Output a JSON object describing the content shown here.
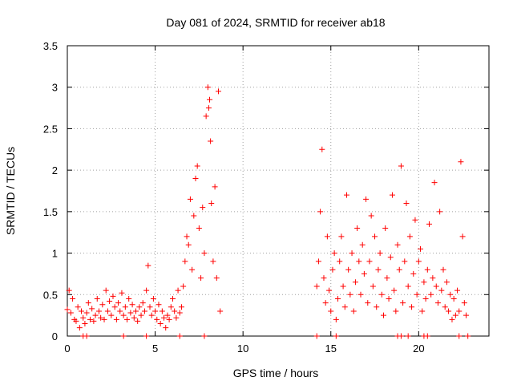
{
  "chart_data": {
    "type": "scatter",
    "title": "Day 081 of 2024, SRMTID for receiver ab18",
    "xlabel": "GPS time / hours",
    "ylabel": "SRMTID / TECUs",
    "xlim": [
      0,
      24
    ],
    "ylim": [
      0,
      3.5
    ],
    "grid": true,
    "x_ticks": [
      0,
      5,
      10,
      15,
      20
    ],
    "x_tick_labels": [
      "0",
      "5",
      "10",
      "15",
      "20"
    ],
    "y_ticks": [
      0,
      0.5,
      1,
      1.5,
      2,
      2.5,
      3,
      3.5
    ],
    "y_tick_labels": [
      "0",
      "0.5",
      "1",
      "1.5",
      "2",
      "2.5",
      "3",
      "3.5"
    ],
    "series": [
      {
        "name": "SRMTID",
        "marker": "plus",
        "color": "#ff0000",
        "x": [
          0.0,
          0.1,
          0.2,
          0.3,
          0.4,
          0.5,
          0.6,
          0.7,
          0.8,
          0.9,
          1.0,
          1.1,
          1.2,
          1.3,
          1.4,
          1.5,
          1.6,
          1.7,
          1.8,
          1.9,
          2.0,
          2.1,
          2.2,
          2.3,
          2.4,
          2.5,
          2.6,
          2.7,
          2.8,
          2.9,
          3.0,
          3.1,
          3.2,
          3.3,
          3.4,
          3.5,
          3.6,
          3.7,
          3.8,
          3.9,
          4.0,
          4.1,
          4.2,
          4.3,
          4.4,
          4.5,
          4.6,
          4.7,
          4.8,
          4.9,
          5.0,
          5.1,
          5.2,
          5.3,
          5.4,
          5.5,
          5.6,
          5.7,
          5.8,
          5.9,
          6.0,
          6.1,
          6.2,
          6.3,
          6.4,
          6.5,
          6.6,
          6.7,
          6.8,
          6.9,
          7.0,
          7.1,
          7.2,
          7.3,
          7.4,
          7.5,
          7.6,
          7.7,
          7.8,
          7.9,
          8.0,
          8.05,
          8.1,
          8.15,
          8.2,
          8.3,
          8.4,
          8.5,
          8.6,
          8.7,
          14.2,
          14.3,
          14.4,
          14.5,
          14.6,
          14.7,
          14.8,
          14.9,
          15.0,
          15.1,
          15.2,
          15.3,
          15.4,
          15.5,
          15.6,
          15.7,
          15.8,
          15.9,
          16.0,
          16.1,
          16.2,
          16.3,
          16.4,
          16.5,
          16.6,
          16.7,
          16.8,
          16.9,
          17.0,
          17.1,
          17.2,
          17.3,
          17.4,
          17.5,
          17.6,
          17.7,
          17.8,
          17.9,
          18.0,
          18.1,
          18.2,
          18.3,
          18.4,
          18.5,
          18.6,
          18.7,
          18.8,
          18.9,
          19.0,
          19.1,
          19.2,
          19.3,
          19.4,
          19.5,
          19.6,
          19.7,
          19.8,
          19.9,
          20.0,
          20.1,
          20.2,
          20.3,
          20.4,
          20.5,
          20.6,
          20.7,
          20.8,
          20.9,
          21.0,
          21.1,
          21.2,
          21.3,
          21.4,
          21.5,
          21.6,
          21.7,
          21.8,
          21.9,
          22.0,
          22.1,
          22.2,
          22.3,
          22.4,
          22.5,
          22.6,
          22.7
        ],
        "y": [
          0.32,
          0.55,
          0.28,
          0.45,
          0.2,
          0.18,
          0.35,
          0.1,
          0.3,
          0.22,
          0.15,
          0.28,
          0.4,
          0.2,
          0.33,
          0.18,
          0.25,
          0.45,
          0.3,
          0.22,
          0.38,
          0.2,
          0.55,
          0.3,
          0.42,
          0.25,
          0.48,
          0.35,
          0.2,
          0.4,
          0.3,
          0.52,
          0.25,
          0.35,
          0.2,
          0.45,
          0.28,
          0.38,
          0.22,
          0.3,
          0.18,
          0.35,
          0.25,
          0.4,
          0.3,
          0.55,
          0.85,
          0.35,
          0.25,
          0.45,
          0.3,
          0.2,
          0.38,
          0.15,
          0.3,
          0.22,
          0.1,
          0.25,
          0.2,
          0.35,
          0.45,
          0.3,
          0.22,
          0.55,
          0.28,
          0.35,
          0.6,
          0.9,
          1.2,
          1.1,
          1.65,
          0.8,
          1.45,
          1.9,
          2.05,
          1.3,
          0.7,
          1.55,
          1.0,
          2.65,
          3.0,
          2.75,
          2.85,
          2.35,
          1.6,
          0.9,
          1.8,
          0.7,
          2.95,
          0.3,
          0.6,
          0.9,
          1.5,
          2.25,
          0.7,
          0.4,
          1.2,
          0.55,
          0.3,
          0.8,
          1.0,
          0.2,
          0.45,
          0.9,
          1.2,
          0.6,
          0.35,
          1.7,
          0.8,
          0.5,
          1.0,
          0.3,
          0.65,
          1.3,
          0.9,
          0.5,
          1.1,
          0.75,
          1.65,
          0.4,
          0.9,
          1.45,
          0.6,
          1.2,
          0.35,
          0.8,
          1.0,
          0.5,
          0.25,
          1.3,
          0.7,
          0.45,
          0.95,
          1.7,
          0.55,
          0.3,
          1.1,
          0.8,
          2.05,
          0.4,
          0.9,
          1.6,
          0.6,
          1.2,
          0.35,
          0.75,
          1.4,
          0.5,
          0.9,
          1.05,
          0.3,
          0.65,
          0.45,
          0.8,
          1.35,
          0.5,
          0.7,
          1.85,
          0.6,
          0.4,
          1.5,
          0.55,
          0.8,
          0.35,
          0.65,
          0.3,
          0.5,
          0.2,
          0.45,
          0.25,
          0.55,
          0.3,
          2.1,
          1.2,
          0.4,
          0.25
        ]
      }
    ],
    "near_zero_markers_x": [
      0.9,
      1.1,
      3.2,
      4.5,
      6.4,
      7.8,
      14.2,
      15.3,
      18.8,
      19.0,
      19.4,
      20.3,
      20.5,
      22.3,
      22.8
    ],
    "near_zero_markers_y": [
      0.0,
      0.0,
      0.0,
      0.0,
      0.0,
      0.0,
      0.0,
      0.0,
      0.0,
      0.0,
      0.0,
      0.0,
      0.0,
      0.0,
      0.0
    ]
  }
}
